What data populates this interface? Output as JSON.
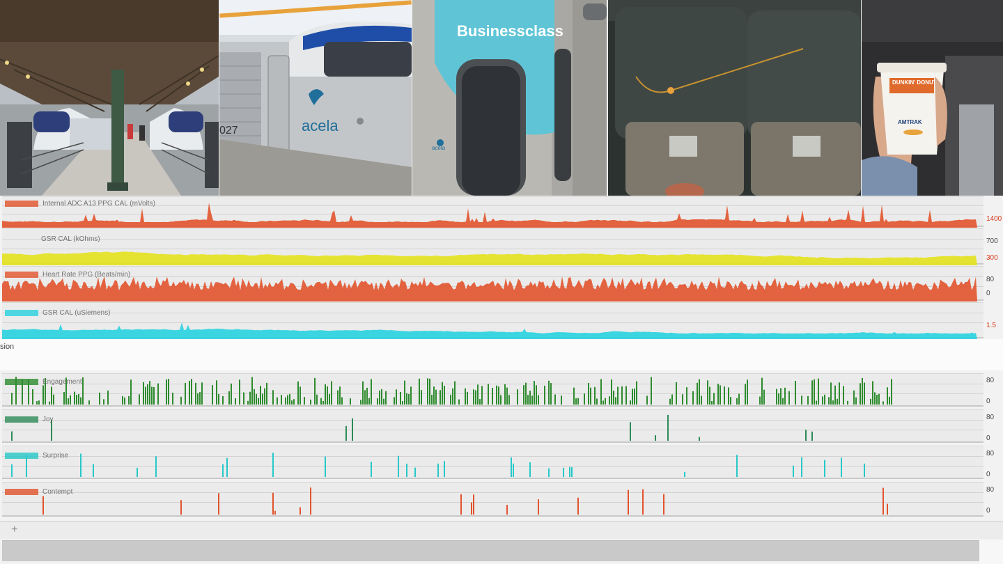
{
  "photos": {
    "business_class_sign": "Businessclass",
    "train_brand": "acela",
    "train_number": "027",
    "cup_brand": "DUNKIN' DONUTS",
    "cup_brand_2": "AMTRAK"
  },
  "signals": [
    {
      "label": "Internal ADC A13 PPG CAL (mVolts)",
      "color": "#e2532c",
      "tick_top": "",
      "tick_bottom": "1400"
    },
    {
      "label": "GSR CAL (kOhms)",
      "color": "#e4e21d",
      "tick_top": "700",
      "tick_bottom": "300"
    },
    {
      "label": "Heart Rate PPG (Beats/min)",
      "color": "#e2532c",
      "tick_top": "80",
      "tick_bottom": "0"
    },
    {
      "label": "GSR CAL (uSiemens)",
      "color": "#27d3e0",
      "tick_top": "",
      "tick_bottom": "1.5"
    }
  ],
  "section_label": "sion",
  "emotions": [
    {
      "label": "Engagement",
      "color": "#2e8b2e",
      "tick_top": "80",
      "tick_bottom": "0"
    },
    {
      "label": "Joy",
      "color": "#2e8b57",
      "tick_top": "80",
      "tick_bottom": "0"
    },
    {
      "label": "Surprise",
      "color": "#27c8c8",
      "tick_top": "80",
      "tick_bottom": "0"
    },
    {
      "label": "Contempt",
      "color": "#e2532c",
      "tick_top": "80",
      "tick_bottom": "0"
    }
  ],
  "toolbar": {
    "add_label": "+"
  }
}
